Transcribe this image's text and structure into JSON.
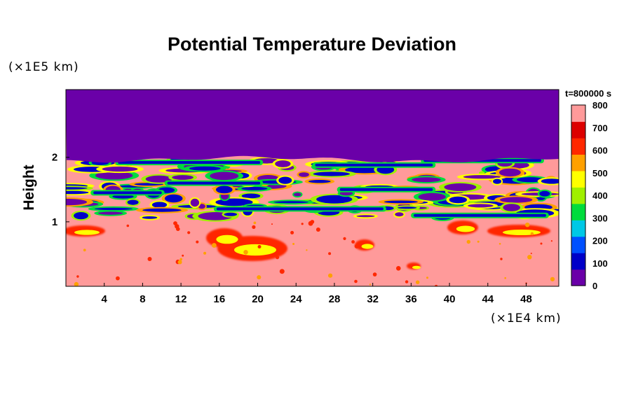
{
  "chart_data": {
    "type": "heatmap",
    "title": "Potential Temperature Deviation",
    "x_unit": "(×1E4 km)",
    "y_unit": "(×1E5 km)",
    "ylabel": "Height",
    "xlabel": "",
    "timestamp": "t=800000 s",
    "x_ticks": [
      "4",
      "8",
      "12",
      "16",
      "20",
      "24",
      "28",
      "32",
      "36",
      "40",
      "44",
      "48"
    ],
    "x_tick_values": [
      4,
      8,
      12,
      16,
      20,
      24,
      28,
      32,
      36,
      40,
      44,
      48
    ],
    "xlim": [
      0,
      51.4
    ],
    "y_ticks": [
      "1",
      "2"
    ],
    "y_tick_values": [
      1,
      2
    ],
    "ylim": [
      0,
      3.05
    ],
    "colorbar": {
      "ticks": [
        "0",
        "100",
        "200",
        "300",
        "400",
        "500",
        "600",
        "700",
        "800"
      ],
      "values": [
        0,
        100,
        200,
        300,
        400,
        500,
        600,
        700,
        800
      ],
      "range": [
        0,
        800
      ],
      "colors": [
        "#6a00a8",
        "#0000c8",
        "#0050ff",
        "#00c8e6",
        "#00dc3c",
        "#a0f000",
        "#ffff00",
        "#ffa000",
        "#ff2800",
        "#dc0000",
        "#ff9a9a"
      ]
    },
    "field_description_regions": {
      "upper_layer_value": 0,
      "lower_layer_value": 800,
      "boundary_height": 2.0
    }
  }
}
